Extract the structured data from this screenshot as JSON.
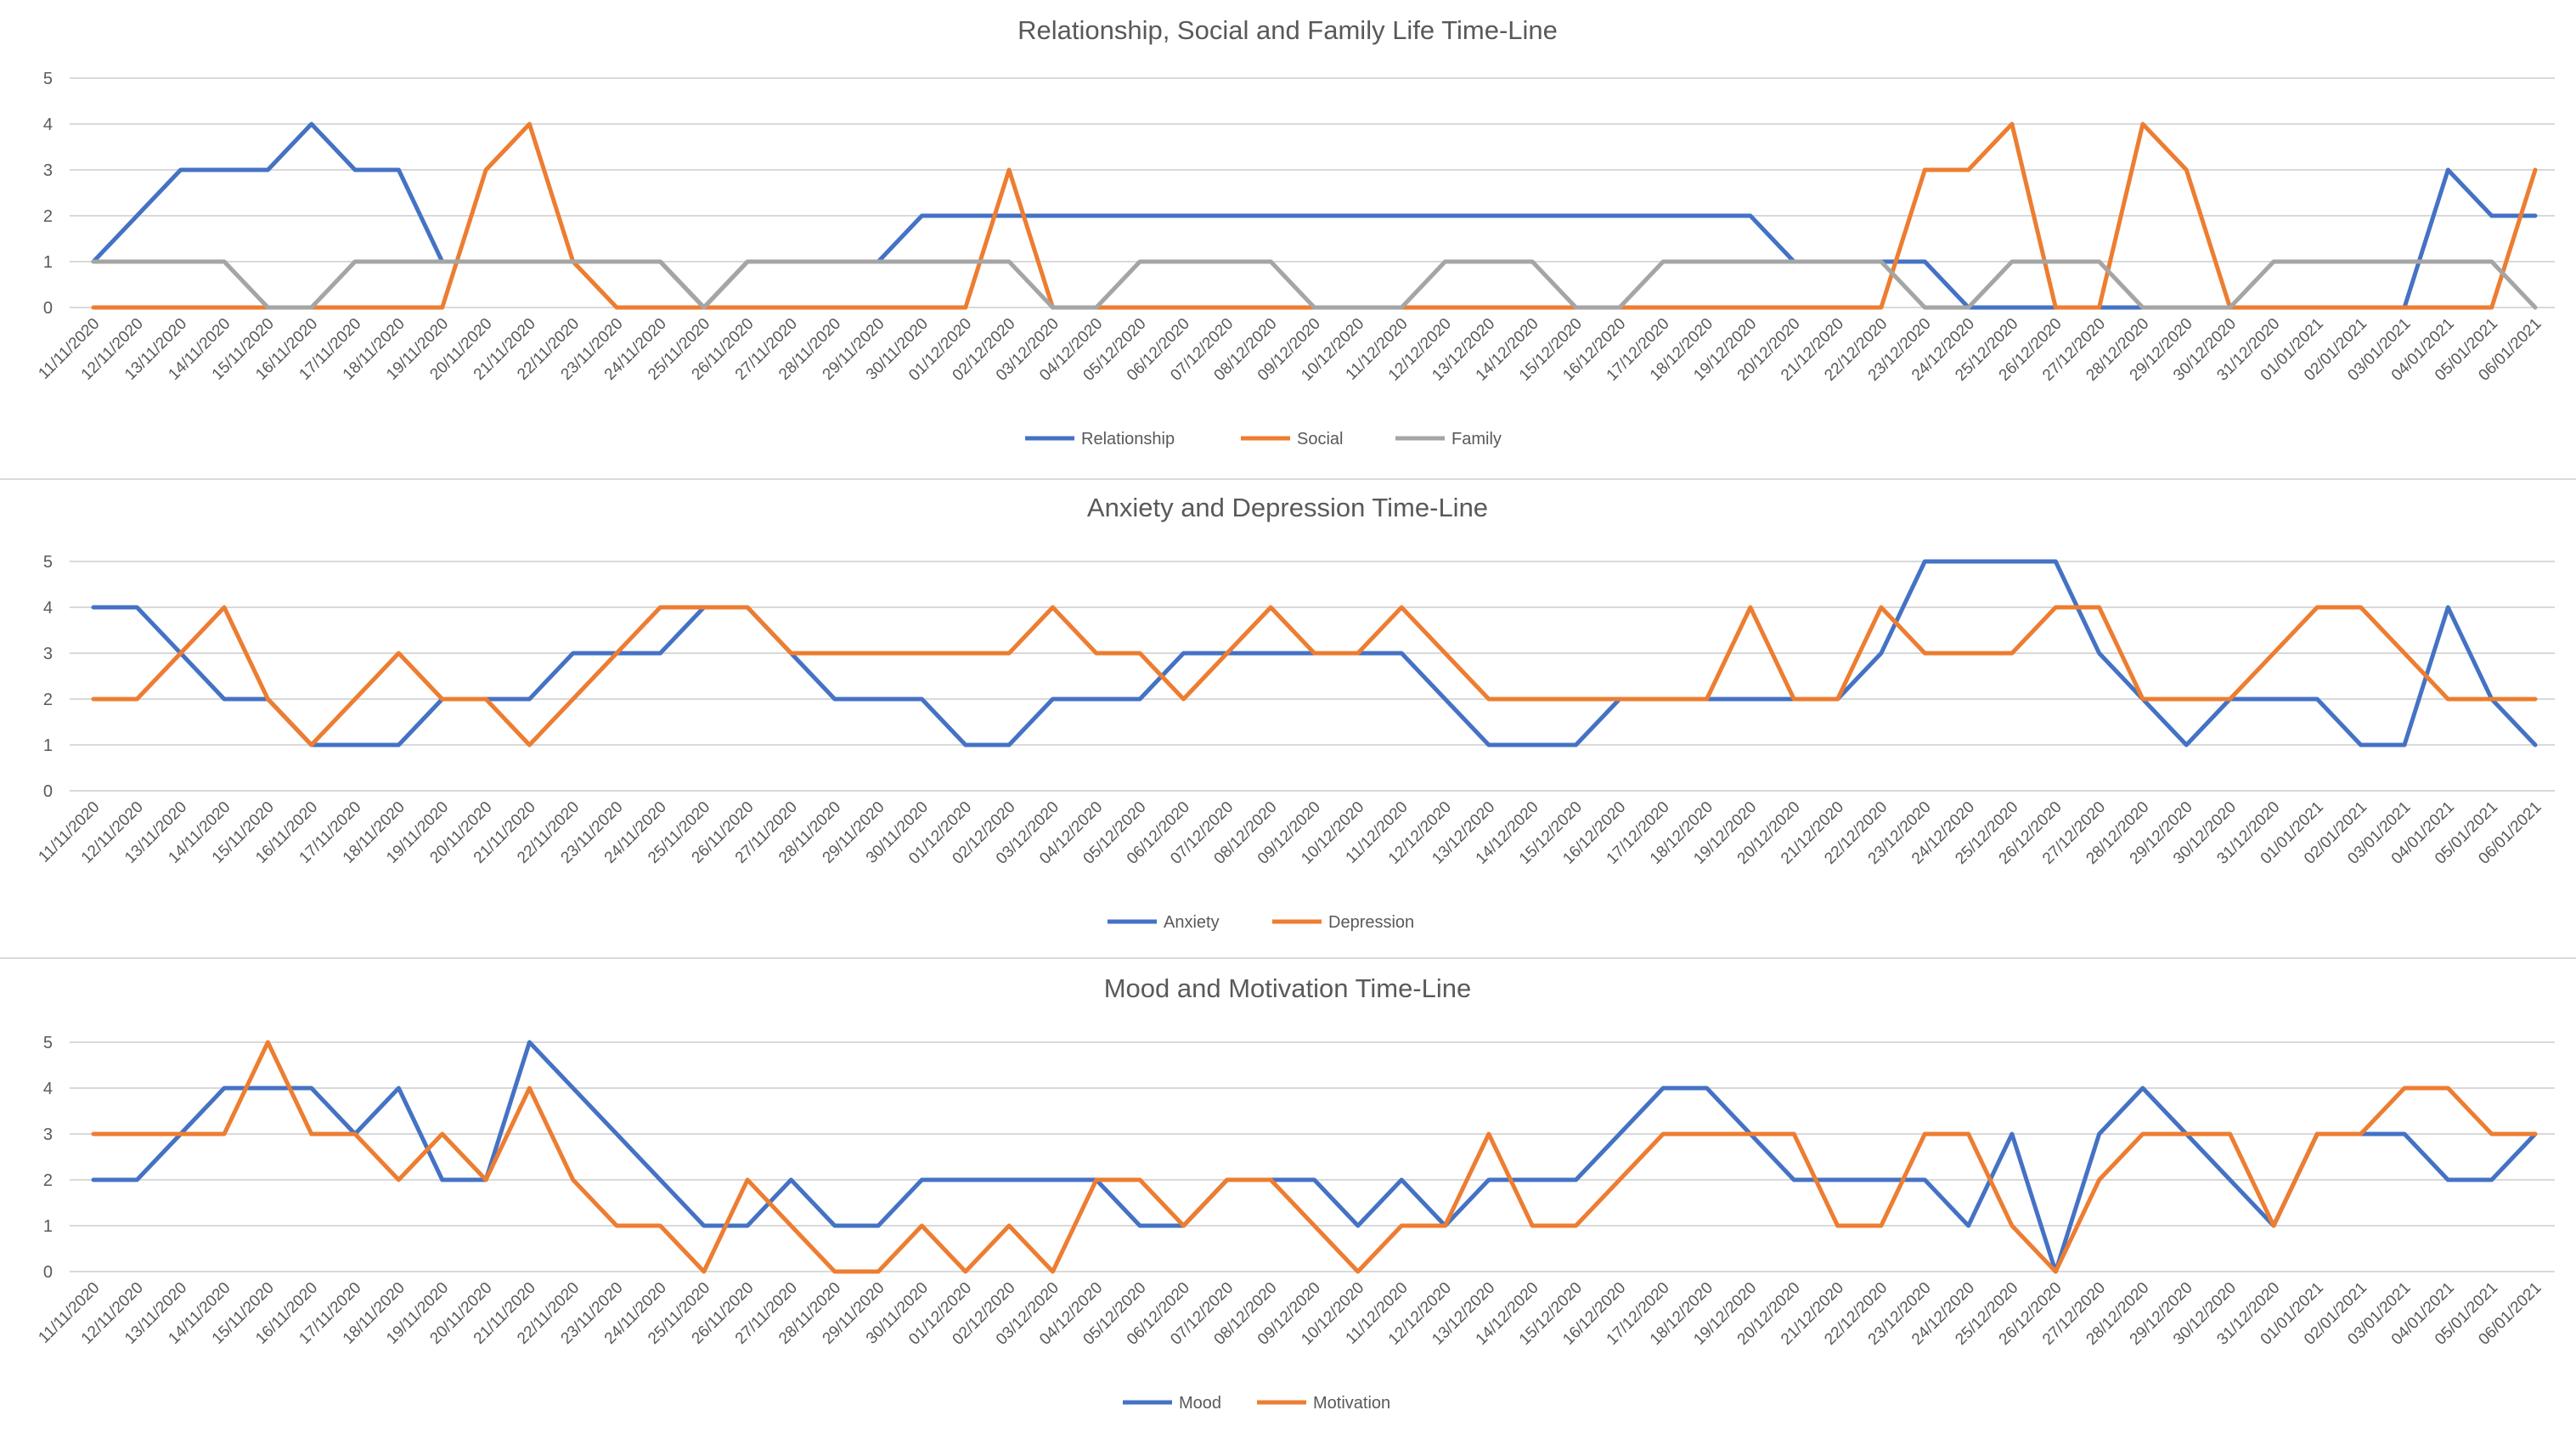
{
  "dates": [
    "11/11/2020",
    "12/11/2020",
    "13/11/2020",
    "14/11/2020",
    "15/11/2020",
    "16/11/2020",
    "17/11/2020",
    "18/11/2020",
    "19/11/2020",
    "20/11/2020",
    "21/11/2020",
    "22/11/2020",
    "23/11/2020",
    "24/11/2020",
    "25/11/2020",
    "26/11/2020",
    "27/11/2020",
    "28/11/2020",
    "29/11/2020",
    "30/11/2020",
    "01/12/2020",
    "02/12/2020",
    "03/12/2020",
    "04/12/2020",
    "05/12/2020",
    "06/12/2020",
    "07/12/2020",
    "08/12/2020",
    "09/12/2020",
    "10/12/2020",
    "11/12/2020",
    "12/12/2020",
    "13/12/2020",
    "14/12/2020",
    "15/12/2020",
    "16/12/2020",
    "17/12/2020",
    "18/12/2020",
    "19/12/2020",
    "20/12/2020",
    "21/12/2020",
    "22/12/2020",
    "23/12/2020",
    "24/12/2020",
    "25/12/2020",
    "26/12/2020",
    "27/12/2020",
    "28/12/2020",
    "29/12/2020",
    "30/12/2020",
    "31/12/2020",
    "01/01/2021",
    "02/01/2021",
    "03/01/2021",
    "04/01/2021",
    "05/01/2021",
    "06/01/2021"
  ],
  "chart_data": [
    {
      "type": "line",
      "title": "Relationship, Social and Family Life Time-Line",
      "ylim": [
        0,
        5
      ],
      "yticks": [
        0,
        1,
        2,
        3,
        4,
        5
      ],
      "grid": true,
      "legend": "bottom-center",
      "series": [
        {
          "name": "Relationship",
          "color": "#4472C4",
          "values": [
            1,
            2,
            3,
            3,
            3,
            4,
            3,
            3,
            1,
            1,
            1,
            1,
            1,
            1,
            0,
            1,
            1,
            1,
            1,
            2,
            2,
            2,
            2,
            2,
            2,
            2,
            2,
            2,
            2,
            2,
            2,
            2,
            2,
            2,
            2,
            2,
            2,
            2,
            2,
            1,
            1,
            1,
            1,
            0,
            0,
            0,
            0,
            0,
            0,
            0,
            0,
            0,
            0,
            0,
            3,
            2,
            2
          ]
        },
        {
          "name": "Social",
          "color": "#ED7D31",
          "values": [
            0,
            0,
            0,
            0,
            0,
            0,
            0,
            0,
            0,
            3,
            4,
            1,
            0,
            0,
            0,
            0,
            0,
            0,
            0,
            0,
            0,
            3,
            0,
            0,
            0,
            0,
            0,
            0,
            0,
            0,
            0,
            0,
            0,
            0,
            0,
            0,
            0,
            0,
            0,
            0,
            0,
            0,
            3,
            3,
            4,
            0,
            0,
            4,
            3,
            0,
            0,
            0,
            0,
            0,
            0,
            0,
            3
          ]
        },
        {
          "name": "Family",
          "color": "#A5A5A5",
          "values": [
            1,
            1,
            1,
            1,
            0,
            0,
            1,
            1,
            1,
            1,
            1,
            1,
            1,
            1,
            0,
            1,
            1,
            1,
            1,
            1,
            1,
            1,
            0,
            0,
            1,
            1,
            1,
            1,
            0,
            0,
            0,
            1,
            1,
            1,
            0,
            0,
            1,
            1,
            1,
            1,
            1,
            1,
            0,
            0,
            1,
            1,
            1,
            0,
            0,
            0,
            1,
            1,
            1,
            1,
            1,
            1,
            0
          ]
        }
      ]
    },
    {
      "type": "line",
      "title": "Anxiety and Depression Time-Line",
      "ylim": [
        0,
        5
      ],
      "yticks": [
        0,
        1,
        2,
        3,
        4,
        5
      ],
      "grid": true,
      "legend": "bottom-center",
      "series": [
        {
          "name": "Anxiety",
          "color": "#4472C4",
          "values": [
            4,
            4,
            3,
            2,
            2,
            1,
            1,
            1,
            2,
            2,
            2,
            3,
            3,
            3,
            4,
            4,
            3,
            2,
            2,
            2,
            1,
            1,
            2,
            2,
            2,
            3,
            3,
            3,
            3,
            3,
            3,
            2,
            1,
            1,
            1,
            2,
            2,
            2,
            2,
            2,
            2,
            3,
            5,
            5,
            5,
            5,
            3,
            2,
            1,
            2,
            2,
            2,
            1,
            1,
            4,
            2,
            1
          ]
        },
        {
          "name": "Depression",
          "color": "#ED7D31",
          "values": [
            2,
            2,
            3,
            4,
            2,
            1,
            2,
            3,
            2,
            2,
            1,
            2,
            3,
            4,
            4,
            4,
            3,
            3,
            3,
            3,
            3,
            3,
            4,
            3,
            3,
            2,
            3,
            4,
            3,
            3,
            4,
            3,
            2,
            2,
            2,
            2,
            2,
            2,
            4,
            2,
            2,
            4,
            3,
            3,
            3,
            4,
            4,
            2,
            2,
            2,
            3,
            4,
            4,
            3,
            2,
            2,
            2
          ]
        }
      ]
    },
    {
      "type": "line",
      "title": "Mood and Motivation Time-Line",
      "ylim": [
        0,
        5
      ],
      "yticks": [
        0,
        1,
        2,
        3,
        4,
        5
      ],
      "grid": true,
      "legend": "bottom-center",
      "series": [
        {
          "name": "Mood",
          "color": "#4472C4",
          "values": [
            2,
            2,
            3,
            4,
            4,
            4,
            3,
            4,
            2,
            2,
            5,
            4,
            3,
            2,
            1,
            1,
            2,
            1,
            1,
            2,
            2,
            2,
            2,
            2,
            1,
            1,
            2,
            2,
            2,
            1,
            2,
            1,
            2,
            2,
            2,
            3,
            4,
            4,
            3,
            2,
            2,
            2,
            2,
            1,
            3,
            0,
            3,
            4,
            3,
            2,
            1,
            3,
            3,
            3,
            2,
            2,
            3
          ]
        },
        {
          "name": "Motivation",
          "color": "#ED7D31",
          "values": [
            3,
            3,
            3,
            3,
            5,
            3,
            3,
            2,
            3,
            2,
            4,
            2,
            1,
            1,
            0,
            2,
            1,
            0,
            0,
            1,
            0,
            1,
            0,
            2,
            2,
            1,
            2,
            2,
            1,
            0,
            1,
            1,
            3,
            1,
            1,
            2,
            3,
            3,
            3,
            3,
            1,
            1,
            3,
            3,
            1,
            0,
            2,
            3,
            3,
            3,
            1,
            3,
            3,
            4,
            4,
            3,
            3
          ]
        }
      ]
    }
  ]
}
